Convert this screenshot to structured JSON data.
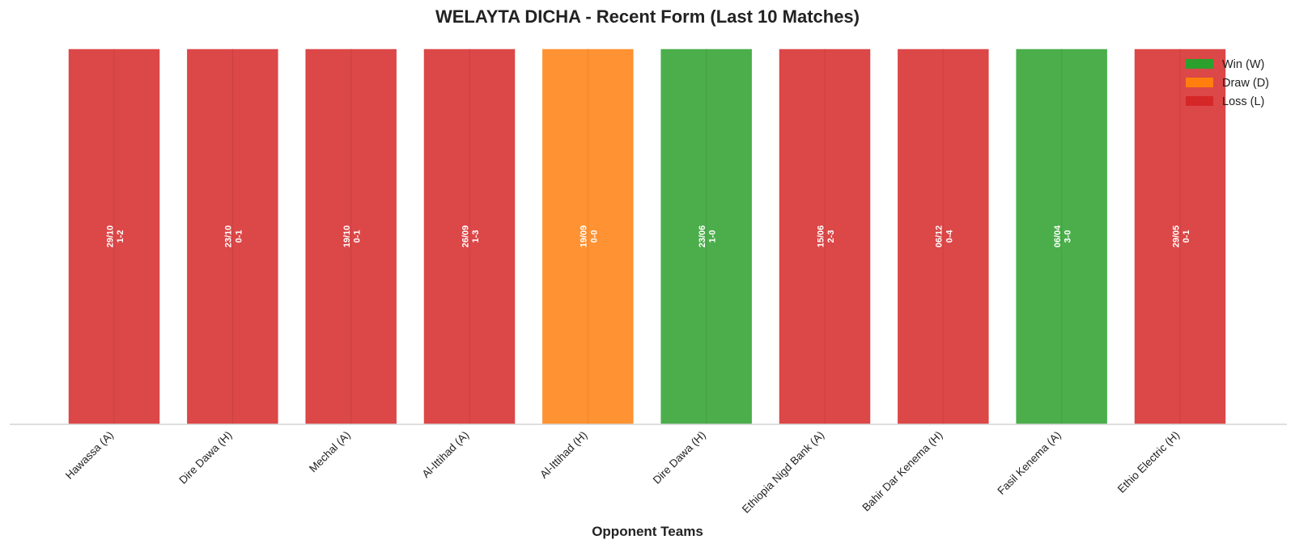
{
  "chart_data": {
    "type": "bar",
    "title": "WELAYTA DICHA - Recent Form (Last 10 Matches)",
    "xlabel": "Opponent Teams",
    "ylabel": "",
    "ylim": [
      0,
      1
    ],
    "grid": false,
    "legend_position": "top-right",
    "categories": [
      "Hawassa (A)",
      "Dire Dawa (H)",
      "Mechal (A)",
      "Al-Ittihad (A)",
      "Al-Ittihad (H)",
      "Dire Dawa (H)",
      "Ethiopia Nigd Bank (A)",
      "Bahir Dar Kenema (H)",
      "Fasil Kenema (A)",
      "Ethio Electric (H)"
    ],
    "values": [
      1,
      1,
      1,
      1,
      1,
      1,
      1,
      1,
      1,
      1
    ],
    "results": [
      "L",
      "L",
      "L",
      "L",
      "D",
      "W",
      "L",
      "L",
      "W",
      "L"
    ],
    "dates": [
      "29/10",
      "23/10",
      "19/10",
      "26/09",
      "19/09",
      "23/06",
      "15/06",
      "06/12",
      "06/04",
      "29/05"
    ],
    "scores": [
      "1-2",
      "0-1",
      "0-1",
      "1-3",
      "0-0",
      "1-0",
      "2-3",
      "0-4",
      "3-0",
      "0-1"
    ],
    "legend": [
      {
        "key": "W",
        "label": "Win (W)",
        "color": "#2ca02c"
      },
      {
        "key": "D",
        "label": "Draw (D)",
        "color": "#ff7f0e"
      },
      {
        "key": "L",
        "label": "Loss (L)",
        "color": "#d62728"
      }
    ]
  }
}
